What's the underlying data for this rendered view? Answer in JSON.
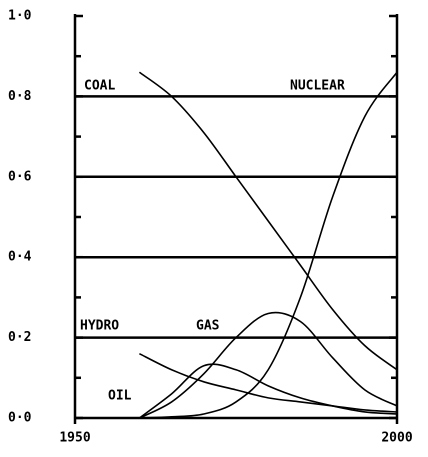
{
  "chart_data": {
    "type": "line",
    "x": [
      1960,
      1965,
      1970,
      1975,
      1980,
      1985,
      1990,
      1995,
      2000
    ],
    "series": [
      {
        "name": "COAL",
        "color": "#000000",
        "values": [
          0.86,
          0.8,
          0.71,
          0.6,
          0.49,
          0.38,
          0.27,
          0.18,
          0.12
        ]
      },
      {
        "name": "NUCLEAR",
        "color": "#000000",
        "values": [
          0,
          0.003,
          0.01,
          0.04,
          0.12,
          0.3,
          0.55,
          0.75,
          0.86
        ]
      },
      {
        "name": "HYDRO",
        "color": "#000000",
        "values": [
          0.16,
          0.12,
          0.09,
          0.07,
          0.05,
          0.04,
          0.03,
          0.02,
          0.015
        ]
      },
      {
        "name": "GAS",
        "color": "#000000",
        "values": [
          0,
          0.04,
          0.11,
          0.2,
          0.26,
          0.24,
          0.15,
          0.07,
          0.03
        ]
      },
      {
        "name": "OIL",
        "color": "#000000",
        "values": [
          0,
          0.06,
          0.13,
          0.12,
          0.08,
          0.05,
          0.03,
          0.015,
          0.01
        ]
      }
    ],
    "xlim": [
      1950,
      2000
    ],
    "xticks": [
      1950,
      2000
    ],
    "ylim": [
      0,
      1
    ],
    "yticks": [
      {
        "value": 0,
        "label": "0·0"
      },
      {
        "value": 0.2,
        "label": "0·2"
      },
      {
        "value": 0.4,
        "label": "0·4"
      },
      {
        "value": 0.6,
        "label": "0·6"
      },
      {
        "value": 0.8,
        "label": "0·8"
      },
      {
        "value": 1,
        "label": "1·0"
      }
    ],
    "minor_yticks": [
      0.1,
      0.3,
      0.5,
      0.7,
      0.9
    ],
    "grid": true
  }
}
